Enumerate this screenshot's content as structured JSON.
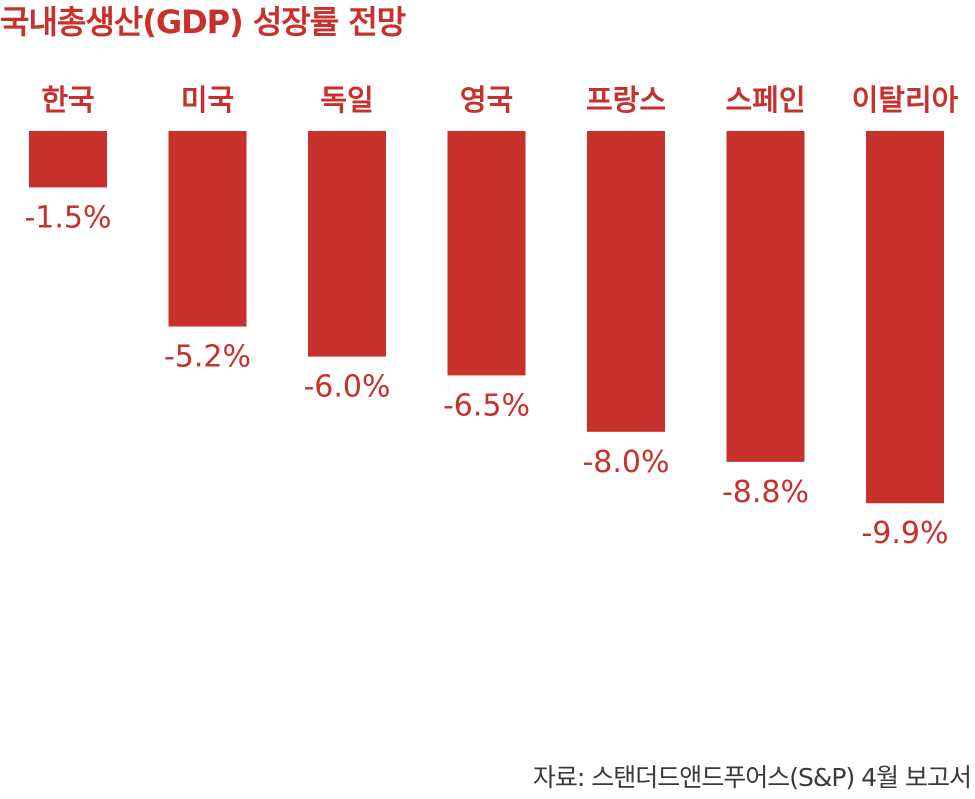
{
  "chart_data": {
    "type": "bar",
    "title": "국내총생산(GDP) 성장률 전망",
    "categories": [
      "한국",
      "미국",
      "독일",
      "영국",
      "프랑스",
      "스페인",
      "이탈리아"
    ],
    "values": [
      -1.5,
      -5.2,
      -6.0,
      -6.5,
      -8.0,
      -8.8,
      -9.9
    ],
    "value_labels": [
      "-1.5%",
      "-5.2%",
      "-6.0%",
      "-6.5%",
      "-8.0%",
      "-8.8%",
      "-9.9%"
    ],
    "xlabel": "",
    "ylabel": "",
    "ylim": [
      -9.9,
      0
    ],
    "grid": false,
    "legend": "none",
    "bar_color": "#c8302b",
    "source": "자료: 스탠더드앤드푸어스(S&P) 4월 보고서"
  }
}
